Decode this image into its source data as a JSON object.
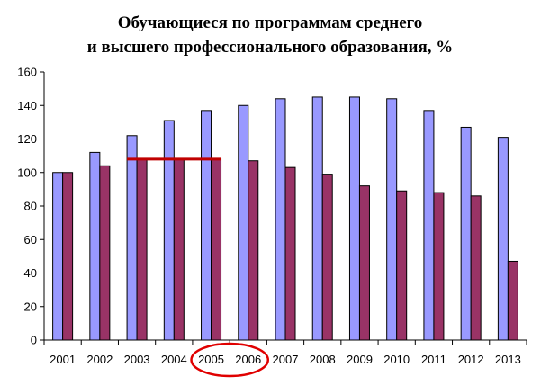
{
  "chart_data": {
    "type": "bar",
    "title_lines": [
      "Обучающиеся по программам среднего",
      "и высшего профессионального образования, %"
    ],
    "categories": [
      "2001",
      "2002",
      "2003",
      "2004",
      "2005",
      "2006",
      "2007",
      "2008",
      "2009",
      "2010",
      "2011",
      "2012",
      "2013"
    ],
    "series": [
      {
        "color": "#9999FF",
        "values": [
          100,
          112,
          122,
          131,
          137,
          140,
          144,
          145,
          145,
          144,
          137,
          127,
          121
        ]
      },
      {
        "color": "#993366",
        "values": [
          100,
          104,
          108,
          108,
          108,
          107,
          103,
          99,
          92,
          89,
          88,
          86,
          47
        ]
      }
    ],
    "ylim": [
      0,
      160
    ],
    "yticks": [
      0,
      20,
      40,
      60,
      80,
      100,
      120,
      140,
      160
    ],
    "grid": false,
    "legend": "none",
    "annotations": {
      "highlight_line": {
        "from_category": "2003",
        "to_category": "2005",
        "value": 108,
        "color": "#C00000"
      },
      "highlight_ellipse": {
        "categories": [
          "2005",
          "2006"
        ],
        "color": "#E00000"
      }
    }
  }
}
